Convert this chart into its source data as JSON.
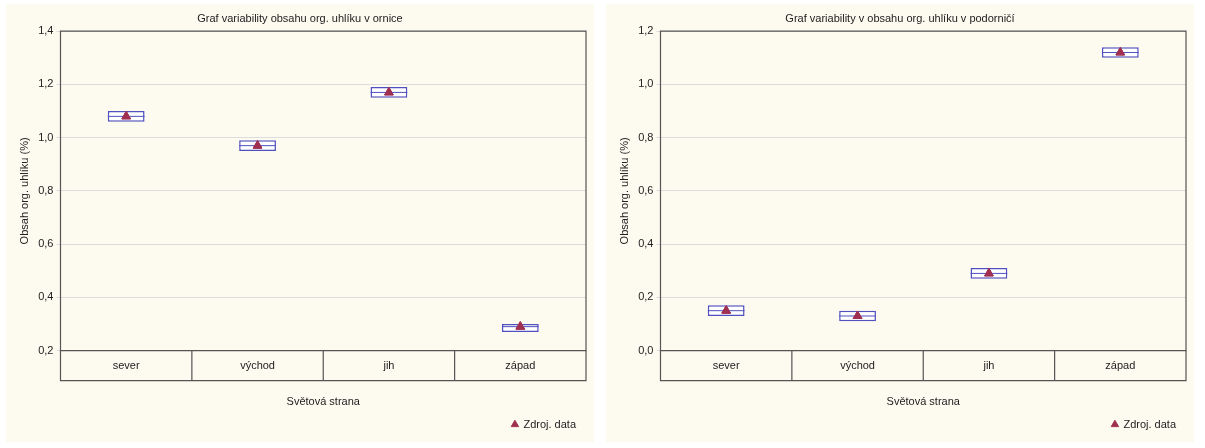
{
  "chart_data": [
    {
      "type": "box",
      "title": "Graf variability obsahu org. uhlíku v ornice",
      "xlabel": "Světová strana",
      "ylabel": "Obsah org. uhlíku (%)",
      "categories": [
        "sever",
        "východ",
        "jih",
        "západ"
      ],
      "ylim": [
        0.2,
        1.4
      ],
      "yticks": [
        {
          "value": 0.2,
          "label": "0,2"
        },
        {
          "value": 0.4,
          "label": "0,4"
        },
        {
          "value": 0.6,
          "label": "0,6"
        },
        {
          "value": 0.8,
          "label": "0,8"
        },
        {
          "value": 1.0,
          "label": "1,0"
        },
        {
          "value": 1.2,
          "label": "1,2"
        },
        {
          "value": 1.4,
          "label": "1,4"
        }
      ],
      "grid": "y",
      "legend": "bottom right",
      "series": [
        {
          "color": "#5050c0",
          "boxes": [
            {
              "low": 1.06,
              "q1": 1.06,
              "median": 1.08,
              "q3": 1.1,
              "high": 1.1
            },
            {
              "low": 0.95,
              "q1": 0.95,
              "median": 0.97,
              "q3": 0.99,
              "high": 0.99
            },
            {
              "low": 1.15,
              "q1": 1.15,
              "median": 1.17,
              "q3": 1.19,
              "high": 1.19
            },
            {
              "low": 0.27,
              "q1": 0.27,
              "median": 0.29,
              "q3": 0.3,
              "high": 0.3
            }
          ]
        },
        {
          "type": "scatter",
          "name": "Zdroj. data",
          "color": "#a03050",
          "marker": "triangle",
          "x": [
            "sever",
            "východ",
            "jih",
            "západ"
          ],
          "values": [
            1.08,
            0.97,
            1.17,
            0.29
          ]
        }
      ]
    },
    {
      "type": "box",
      "title": "Graf variability v obsahu org. uhlíku v podorničí",
      "xlabel": "Světová strana",
      "ylabel": "Obsah org. uhlíku (%)",
      "categories": [
        "sever",
        "východ",
        "jih",
        "západ"
      ],
      "ylim": [
        0.0,
        1.2
      ],
      "yticks": [
        {
          "value": 0.0,
          "label": "0,0"
        },
        {
          "value": 0.2,
          "label": "0,2"
        },
        {
          "value": 0.4,
          "label": "0,4"
        },
        {
          "value": 0.6,
          "label": "0,6"
        },
        {
          "value": 0.8,
          "label": "0,8"
        },
        {
          "value": 1.0,
          "label": "1,0"
        },
        {
          "value": 1.2,
          "label": "1,2"
        }
      ],
      "grid": "y",
      "legend": "bottom right",
      "series": [
        {
          "color": "#5050c0",
          "boxes": [
            {
              "low": 0.13,
              "q1": 0.13,
              "median": 0.15,
              "q3": 0.17,
              "high": 0.17
            },
            {
              "low": 0.11,
              "q1": 0.11,
              "median": 0.13,
              "q3": 0.15,
              "high": 0.15
            },
            {
              "low": 0.27,
              "q1": 0.27,
              "median": 0.29,
              "q3": 0.31,
              "high": 0.31
            },
            {
              "low": 1.1,
              "q1": 1.1,
              "median": 1.12,
              "q3": 1.14,
              "high": 1.14
            }
          ]
        },
        {
          "type": "scatter",
          "name": "Zdroj. data",
          "color": "#a03050",
          "marker": "triangle",
          "x": [
            "sever",
            "východ",
            "jih",
            "západ"
          ],
          "values": [
            0.15,
            0.13,
            0.29,
            1.12
          ]
        }
      ]
    }
  ]
}
